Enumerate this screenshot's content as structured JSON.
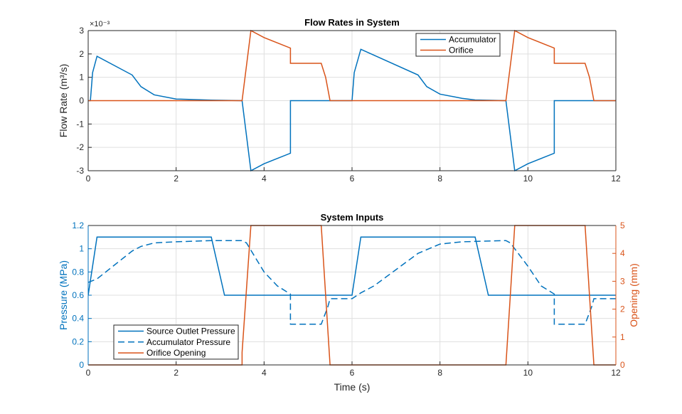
{
  "chart_data": [
    {
      "type": "line",
      "title": "Flow Rates in System",
      "xlabel": "",
      "ylabel": "Flow  Rate  (m³/s)",
      "y_exponent_label": "×10⁻³",
      "xlim": [
        0,
        12
      ],
      "ylim": [
        -3,
        3
      ],
      "xticks": [
        "0",
        "2",
        "4",
        "6",
        "8",
        "10",
        "12"
      ],
      "yticks": [
        "-3",
        "-2",
        "-1",
        "0",
        "1",
        "2",
        "3"
      ],
      "grid": true,
      "legend_placement": "top-right",
      "series": [
        {
          "name": "Accumulator",
          "color": "#0072BD",
          "dash": false,
          "axis": "left",
          "points": [
            [
              0,
              0
            ],
            [
              0.05,
              0
            ],
            [
              0.1,
              1.2
            ],
            [
              0.2,
              1.9
            ],
            [
              1.0,
              1.1
            ],
            [
              1.2,
              0.6
            ],
            [
              1.5,
              0.25
            ],
            [
              2.0,
              0.07
            ],
            [
              2.8,
              0.02
            ],
            [
              3.5,
              0
            ],
            [
              3.7,
              -3
            ],
            [
              4.0,
              -2.7
            ],
            [
              4.6,
              -2.25
            ],
            [
              4.6,
              0
            ],
            [
              6.0,
              0
            ],
            [
              6.05,
              1.2
            ],
            [
              6.2,
              2.2
            ],
            [
              7.5,
              1.1
            ],
            [
              7.7,
              0.6
            ],
            [
              8.0,
              0.28
            ],
            [
              8.5,
              0.1
            ],
            [
              8.8,
              0.03
            ],
            [
              9.5,
              0
            ],
            [
              9.7,
              -3
            ],
            [
              10.0,
              -2.7
            ],
            [
              10.6,
              -2.25
            ],
            [
              10.6,
              0
            ],
            [
              12,
              0
            ]
          ]
        },
        {
          "name": "Orifice",
          "color": "#D95319",
          "dash": false,
          "axis": "left",
          "points": [
            [
              0,
              0
            ],
            [
              3.5,
              0
            ],
            [
              3.7,
              3
            ],
            [
              4.0,
              2.7
            ],
            [
              4.6,
              2.25
            ],
            [
              4.6,
              1.6
            ],
            [
              5.3,
              1.6
            ],
            [
              5.4,
              1.0
            ],
            [
              5.5,
              0
            ],
            [
              9.5,
              0
            ],
            [
              9.7,
              3
            ],
            [
              10.0,
              2.7
            ],
            [
              10.6,
              2.25
            ],
            [
              10.6,
              1.6
            ],
            [
              11.3,
              1.6
            ],
            [
              11.4,
              1.0
            ],
            [
              11.5,
              0
            ],
            [
              12,
              0
            ]
          ]
        }
      ]
    },
    {
      "type": "line",
      "title": "System Inputs",
      "xlabel": "Time (s)",
      "ylabel": "Pressure (MPa)",
      "ylabel_right": "Opening (mm)",
      "xlim": [
        0,
        12
      ],
      "ylim": [
        0,
        1.2
      ],
      "ylim_right": [
        0,
        5
      ],
      "xticks": [
        "0",
        "2",
        "4",
        "6",
        "8",
        "10",
        "12"
      ],
      "yticks": [
        "0",
        "0.2",
        "0.4",
        "0.6",
        "0.8",
        "1",
        "1.2"
      ],
      "yticks_right": [
        "0",
        "1",
        "2",
        "3",
        "4",
        "5"
      ],
      "grid": true,
      "legend_placement": "bottom-left",
      "series": [
        {
          "name": "Source Outlet Pressure",
          "color": "#0072BD",
          "dash": false,
          "axis": "left",
          "points": [
            [
              0,
              0.6
            ],
            [
              0.2,
              1.1
            ],
            [
              2.8,
              1.1
            ],
            [
              3.1,
              0.6
            ],
            [
              6.0,
              0.6
            ],
            [
              6.2,
              1.1
            ],
            [
              8.8,
              1.1
            ],
            [
              9.1,
              0.6
            ],
            [
              12,
              0.6
            ]
          ]
        },
        {
          "name": "Accumulator Pressure",
          "color": "#0072BD",
          "dash": true,
          "axis": "left",
          "points": [
            [
              0,
              0.71
            ],
            [
              0.2,
              0.74
            ],
            [
              0.5,
              0.83
            ],
            [
              1.0,
              0.98
            ],
            [
              1.2,
              1.02
            ],
            [
              1.5,
              1.05
            ],
            [
              2.0,
              1.06
            ],
            [
              2.8,
              1.07
            ],
            [
              3.5,
              1.07
            ],
            [
              3.6,
              1.05
            ],
            [
              4.0,
              0.8
            ],
            [
              4.3,
              0.68
            ],
            [
              4.6,
              0.61
            ],
            [
              4.6,
              0.35
            ],
            [
              5.3,
              0.35
            ],
            [
              5.45,
              0.5
            ],
            [
              5.5,
              0.57
            ],
            [
              6.0,
              0.57
            ],
            [
              6.2,
              0.62
            ],
            [
              6.5,
              0.68
            ],
            [
              7.0,
              0.82
            ],
            [
              7.5,
              0.96
            ],
            [
              8.0,
              1.04
            ],
            [
              8.5,
              1.06
            ],
            [
              9.5,
              1.07
            ],
            [
              9.6,
              1.05
            ],
            [
              10.0,
              0.85
            ],
            [
              10.3,
              0.68
            ],
            [
              10.6,
              0.61
            ],
            [
              10.6,
              0.35
            ],
            [
              11.3,
              0.35
            ],
            [
              11.45,
              0.5
            ],
            [
              11.5,
              0.57
            ],
            [
              12,
              0.57
            ]
          ]
        },
        {
          "name": "Orifice Opening",
          "color": "#D95319",
          "dash": false,
          "axis": "right",
          "points": [
            [
              0,
              0
            ],
            [
              3.5,
              0
            ],
            [
              3.5,
              0.45
            ],
            [
              3.7,
              5
            ],
            [
              5.3,
              5
            ],
            [
              5.5,
              0
            ],
            [
              9.5,
              0
            ],
            [
              9.7,
              5
            ],
            [
              11.3,
              5
            ],
            [
              11.5,
              0
            ],
            [
              12,
              0
            ]
          ]
        }
      ]
    }
  ]
}
